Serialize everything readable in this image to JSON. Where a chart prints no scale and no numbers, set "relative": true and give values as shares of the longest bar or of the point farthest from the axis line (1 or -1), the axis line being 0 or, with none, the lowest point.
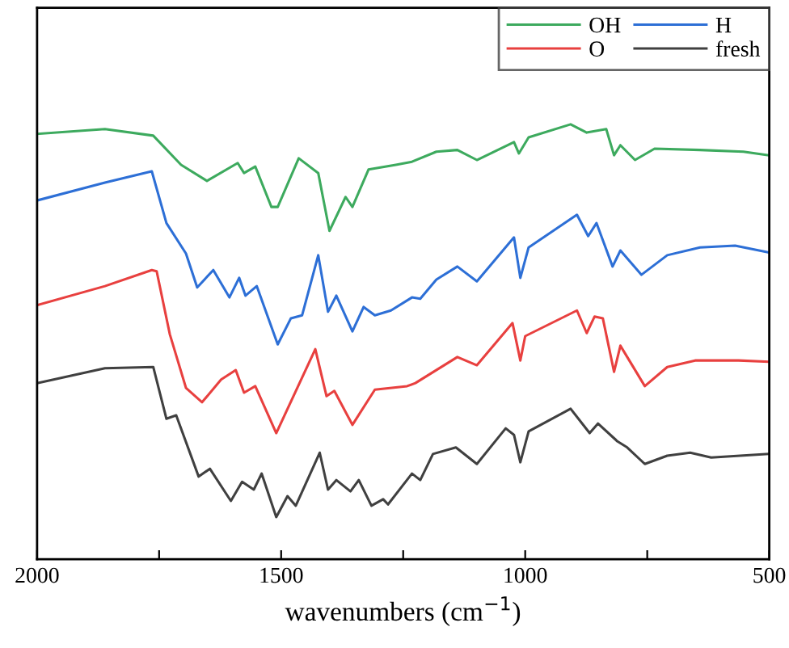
{
  "chart_data": {
    "type": "line",
    "relative": true,
    "xlabel": "wavenumbers (cm$^{−1}$)",
    "xlim": [
      2000,
      500
    ],
    "xticks": [
      2000,
      {
        "value": 1750,
        "label": null
      },
      1500,
      {
        "value": 1250,
        "label": null
      },
      1000,
      {
        "value": 750,
        "label": null
      },
      500
    ],
    "tick_labels": "x",
    "grid": false,
    "legend": "top right",
    "marker": "none",
    "line_style": "solid",
    "series": [
      {
        "name": "OH",
        "color": "#3daa5e",
        "x": [
          2000,
          1861,
          1762,
          1705,
          1652,
          1589,
          1576,
          1553,
          1520,
          1507,
          1464,
          1424,
          1401,
          1368,
          1354,
          1321,
          1265,
          1232,
          1182,
          1139,
          1099,
          1023,
          1013,
          993,
          907,
          874,
          834,
          818,
          805,
          775,
          735,
          642,
          553,
          503
        ],
        "values": [
          0.978,
          0.989,
          0.974,
          0.907,
          0.87,
          0.911,
          0.888,
          0.903,
          0.81,
          0.81,
          0.922,
          0.888,
          0.755,
          0.833,
          0.81,
          0.896,
          0.907,
          0.914,
          0.937,
          0.941,
          0.918,
          0.959,
          0.933,
          0.97,
          1,
          0.981,
          0.989,
          0.929,
          0.952,
          0.918,
          0.944,
          0.941,
          0.937,
          0.929
        ]
      },
      {
        "name": "H",
        "color": "#2d6fd6",
        "x": [
          2000,
          1861,
          1765,
          1735,
          1695,
          1672,
          1639,
          1606,
          1586,
          1573,
          1550,
          1507,
          1480,
          1457,
          1424,
          1404,
          1387,
          1354,
          1331,
          1308,
          1275,
          1232,
          1215,
          1182,
          1139,
          1099,
          1023,
          1010,
          993,
          894,
          871,
          854,
          821,
          805,
          762,
          709,
          642,
          570,
          503
        ],
        "values": [
          0.825,
          0.866,
          0.892,
          0.773,
          0.703,
          0.625,
          0.665,
          0.602,
          0.647,
          0.606,
          0.628,
          0.494,
          0.554,
          0.561,
          0.699,
          0.569,
          0.606,
          0.524,
          0.58,
          0.561,
          0.572,
          0.602,
          0.599,
          0.643,
          0.673,
          0.639,
          0.74,
          0.647,
          0.717,
          0.792,
          0.743,
          0.773,
          0.673,
          0.71,
          0.654,
          0.699,
          0.717,
          0.721,
          0.706
        ]
      },
      {
        "name": "O",
        "color": "#e8403f",
        "x": [
          2000,
          1861,
          1765,
          1755,
          1728,
          1695,
          1662,
          1623,
          1593,
          1576,
          1553,
          1510,
          1430,
          1407,
          1391,
          1354,
          1308,
          1242,
          1225,
          1139,
          1099,
          1026,
          1010,
          1000,
          894,
          874,
          858,
          841,
          818,
          805,
          755,
          709,
          652,
          563,
          503
        ],
        "values": [
          0.584,
          0.628,
          0.665,
          0.662,
          0.517,
          0.394,
          0.361,
          0.413,
          0.435,
          0.383,
          0.398,
          0.29,
          0.483,
          0.375,
          0.387,
          0.309,
          0.39,
          0.398,
          0.405,
          0.465,
          0.446,
          0.543,
          0.457,
          0.513,
          0.572,
          0.52,
          0.558,
          0.554,
          0.431,
          0.491,
          0.398,
          0.442,
          0.457,
          0.457,
          0.454
        ]
      },
      {
        "name": "fresh",
        "color": "#404040",
        "x": [
          2000,
          1861,
          1762,
          1735,
          1715,
          1669,
          1646,
          1603,
          1580,
          1556,
          1540,
          1510,
          1487,
          1470,
          1421,
          1404,
          1387,
          1358,
          1341,
          1315,
          1291,
          1281,
          1232,
          1215,
          1189,
          1142,
          1099,
          1040,
          1023,
          1010,
          993,
          907,
          868,
          851,
          811,
          791,
          755,
          709,
          662,
          619,
          503
        ],
        "values": [
          0.405,
          0.439,
          0.442,
          0.323,
          0.331,
          0.19,
          0.208,
          0.134,
          0.178,
          0.16,
          0.197,
          0.097,
          0.145,
          0.123,
          0.245,
          0.16,
          0.182,
          0.156,
          0.182,
          0.123,
          0.138,
          0.126,
          0.197,
          0.182,
          0.242,
          0.257,
          0.219,
          0.301,
          0.286,
          0.223,
          0.294,
          0.346,
          0.29,
          0.312,
          0.271,
          0.257,
          0.219,
          0.238,
          0.245,
          0.234,
          0.242
        ]
      }
    ]
  }
}
